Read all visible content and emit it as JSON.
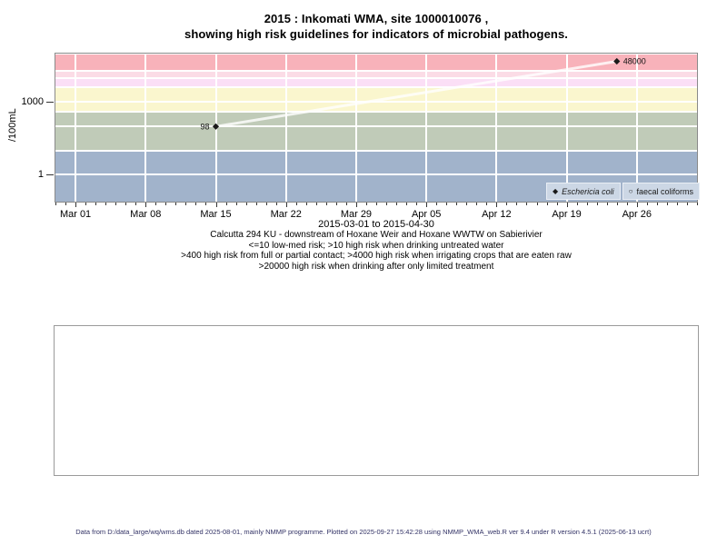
{
  "title": {
    "line1": "2015 : Inkomati WMA, site 1000010076 ,",
    "line2": "showing high risk guidelines for indicators of microbial pathogens."
  },
  "chart_data": {
    "type": "line",
    "title": "2015 : Inkomati WMA, site 1000010076 , showing high risk guidelines for indicators of microbial pathogens.",
    "ylabel": "/100mL",
    "xlabel": "2015-03-01 to 2015-04-30",
    "y_scale": "log10",
    "ylim": [
      0.078,
      100000
    ],
    "xlim": [
      "2015-02-27",
      "2015-05-02"
    ],
    "y_ticks": [
      {
        "value": 1000,
        "label": "1000"
      },
      {
        "value": 1,
        "label": "1"
      }
    ],
    "y_gridline_values": [
      1,
      10,
      100,
      400,
      1000,
      4000,
      10000,
      20000,
      100000
    ],
    "x_ticks": [
      {
        "date": "2015-03-01",
        "label": "Mar 01"
      },
      {
        "date": "2015-03-08",
        "label": "Mar 08"
      },
      {
        "date": "2015-03-15",
        "label": "Mar 15"
      },
      {
        "date": "2015-03-22",
        "label": "Mar 22"
      },
      {
        "date": "2015-03-29",
        "label": "Mar 29"
      },
      {
        "date": "2015-04-05",
        "label": "Apr 05"
      },
      {
        "date": "2015-04-12",
        "label": "Apr 12"
      },
      {
        "date": "2015-04-19",
        "label": "Apr 19"
      },
      {
        "date": "2015-04-26",
        "label": "Apr 26"
      }
    ],
    "x_minor_tick_interval_days": 1,
    "risk_bands": [
      {
        "min": 20000,
        "max": 100000,
        "color": "#f8b2ba"
      },
      {
        "min": 10000,
        "max": 20000,
        "color": "#fbdce6"
      },
      {
        "min": 4000,
        "max": 10000,
        "color": "#fbdff6"
      },
      {
        "min": 400,
        "max": 4000,
        "color": "#faf6ce"
      },
      {
        "min": 10,
        "max": 400,
        "color": "#c0cbb8"
      },
      {
        "min": 0.078,
        "max": 10,
        "color": "#a1b3cb"
      }
    ],
    "series": [
      {
        "name": "Eschericia coli",
        "marker": "filled-diamond",
        "line_color": "rgba(255,255,255,0.8)",
        "marker_color": "#1a1a1a",
        "points": [
          {
            "date": "2015-03-15",
            "value": 98,
            "label": "98",
            "label_side": "left"
          },
          {
            "date": "2015-04-24",
            "value": 48000,
            "label": "48000",
            "label_side": "right"
          }
        ]
      },
      {
        "name": "faecal coliforms",
        "marker": "open-circle",
        "points": []
      }
    ],
    "legend_position": "bottom-right",
    "grid": true
  },
  "legend": {
    "items": [
      {
        "label": "Eschericia coli",
        "marker": "filled-diamond",
        "style": "italic"
      },
      {
        "label": "faecal coliforms",
        "marker": "open-circle",
        "style": "normal"
      }
    ]
  },
  "captions": {
    "lines": [
      "Calcutta 294 KU - downstream of Hoxane Weir and Hoxane WWTW on Sabierivier",
      "<=10 low-med risk; >10 high risk when drinking untreated water",
      ">400 high risk from full or partial contact; >4000 high risk when irrigating crops that are eaten raw",
      ">20000 high risk when drinking after only limited treatment"
    ]
  },
  "footer": {
    "text": "Data from D:/data_large/wq/wms.db dated 2025-08-01, mainly NMMP programme. Plotted on 2025-09-27 15:42:28 using NMMP_WMA_web.R ver 9.4 under R version 4.5.1 (2025-06-13 ucrt)"
  }
}
